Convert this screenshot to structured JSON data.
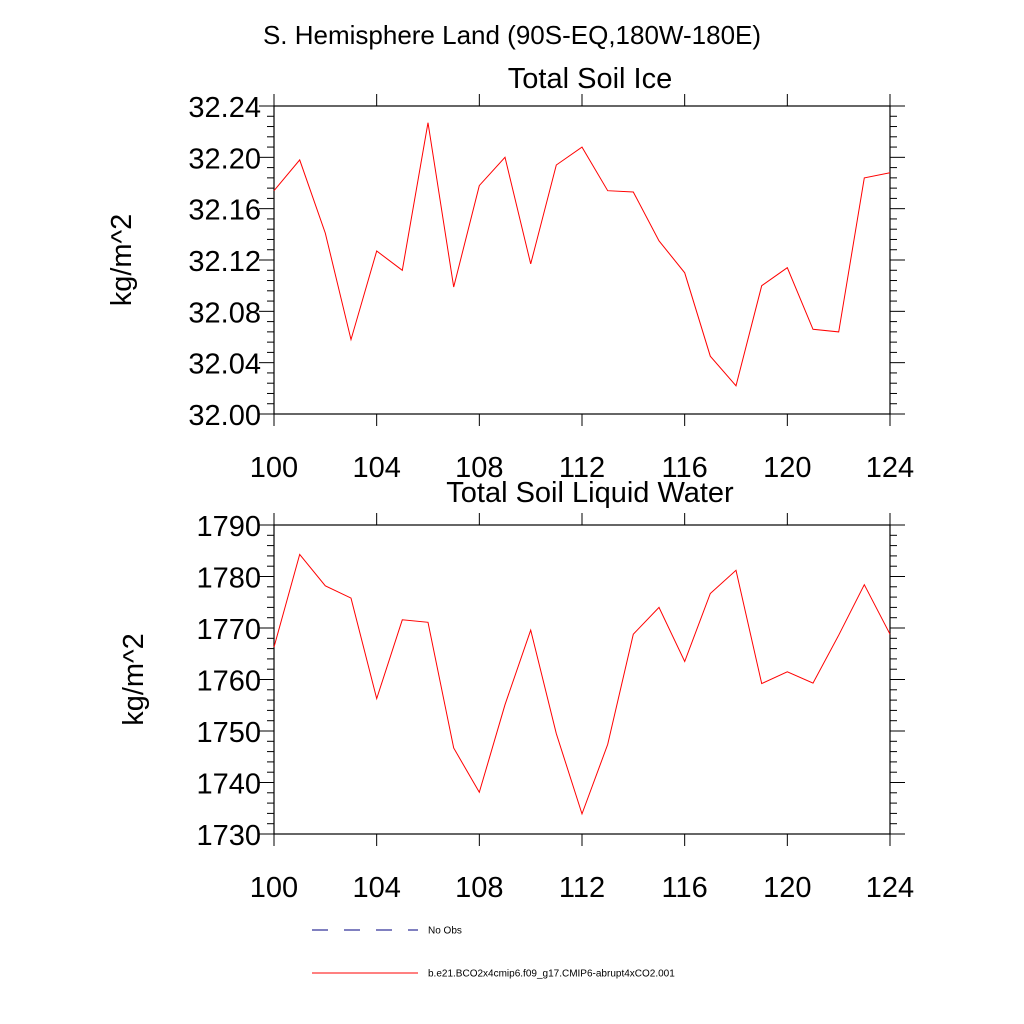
{
  "suptitle": "S. Hemisphere Land (90S-EQ,180W-180E)",
  "chart_data": [
    {
      "type": "line",
      "title": "Total Soil Ice",
      "xlabel": "",
      "ylabel": "kg/m^2",
      "xlim": [
        100,
        124
      ],
      "ylim": [
        32.0,
        32.24
      ],
      "x_ticks": [
        100,
        104,
        108,
        112,
        116,
        120,
        124
      ],
      "x_tick_labels": [
        "100",
        "104",
        "108",
        "112",
        "116",
        "120",
        "124"
      ],
      "y_ticks": [
        32.0,
        32.04,
        32.08,
        32.12,
        32.16,
        32.2,
        32.24
      ],
      "y_tick_labels": [
        "32.00",
        "32.04",
        "32.08",
        "32.12",
        "32.16",
        "32.20",
        "32.24"
      ],
      "grid": false,
      "series": [
        {
          "name": "b.e21.BCO2x4cmip6.f09_g17.CMIP6-abrupt4xCO2.001",
          "color": "#ff0000",
          "x": [
            100,
            101,
            102,
            103,
            104,
            105,
            106,
            107,
            108,
            109,
            110,
            111,
            112,
            113,
            114,
            115,
            116,
            117,
            118,
            119,
            120,
            121,
            122,
            123,
            124
          ],
          "y": [
            32.174,
            32.198,
            32.141,
            32.058,
            32.127,
            32.112,
            32.227,
            32.099,
            32.178,
            32.2,
            32.117,
            32.194,
            32.208,
            32.174,
            32.173,
            32.135,
            32.11,
            32.045,
            32.022,
            32.1,
            32.114,
            32.066,
            32.064,
            32.184,
            32.188
          ]
        }
      ]
    },
    {
      "type": "line",
      "title": "Total Soil Liquid Water",
      "xlabel": "",
      "ylabel": "kg/m^2",
      "xlim": [
        100,
        124
      ],
      "ylim": [
        1730,
        1790
      ],
      "x_ticks": [
        100,
        104,
        108,
        112,
        116,
        120,
        124
      ],
      "x_tick_labels": [
        "100",
        "104",
        "108",
        "112",
        "116",
        "120",
        "124"
      ],
      "y_ticks": [
        1730,
        1740,
        1750,
        1760,
        1770,
        1780,
        1790
      ],
      "y_tick_labels": [
        "1730",
        "1740",
        "1750",
        "1760",
        "1770",
        "1780",
        "1790"
      ],
      "grid": false,
      "series": [
        {
          "name": "b.e21.BCO2x4cmip6.f09_g17.CMIP6-abrupt4xCO2.001",
          "color": "#ff0000",
          "x": [
            100,
            101,
            102,
            103,
            104,
            105,
            106,
            107,
            108,
            109,
            110,
            111,
            112,
            113,
            114,
            115,
            116,
            117,
            118,
            119,
            120,
            121,
            122,
            123,
            124
          ],
          "y": [
            1766.3,
            1784.3,
            1778.2,
            1775.8,
            1756.3,
            1771.6,
            1771.1,
            1746.7,
            1738.1,
            1755.1,
            1769.6,
            1749.5,
            1733.9,
            1747.4,
            1768.8,
            1774.0,
            1763.5,
            1776.7,
            1781.2,
            1759.2,
            1761.5,
            1759.3,
            1768.6,
            1778.4,
            1768.8
          ]
        }
      ]
    }
  ],
  "legend": {
    "placement": "bottom",
    "entries": [
      {
        "label": "No Obs",
        "color": "#000080",
        "style": "dashed"
      },
      {
        "label": "b.e21.BCO2x4cmip6.f09_g17.CMIP6-abrupt4xCO2.001",
        "color": "#ff0000",
        "style": "solid"
      }
    ]
  }
}
